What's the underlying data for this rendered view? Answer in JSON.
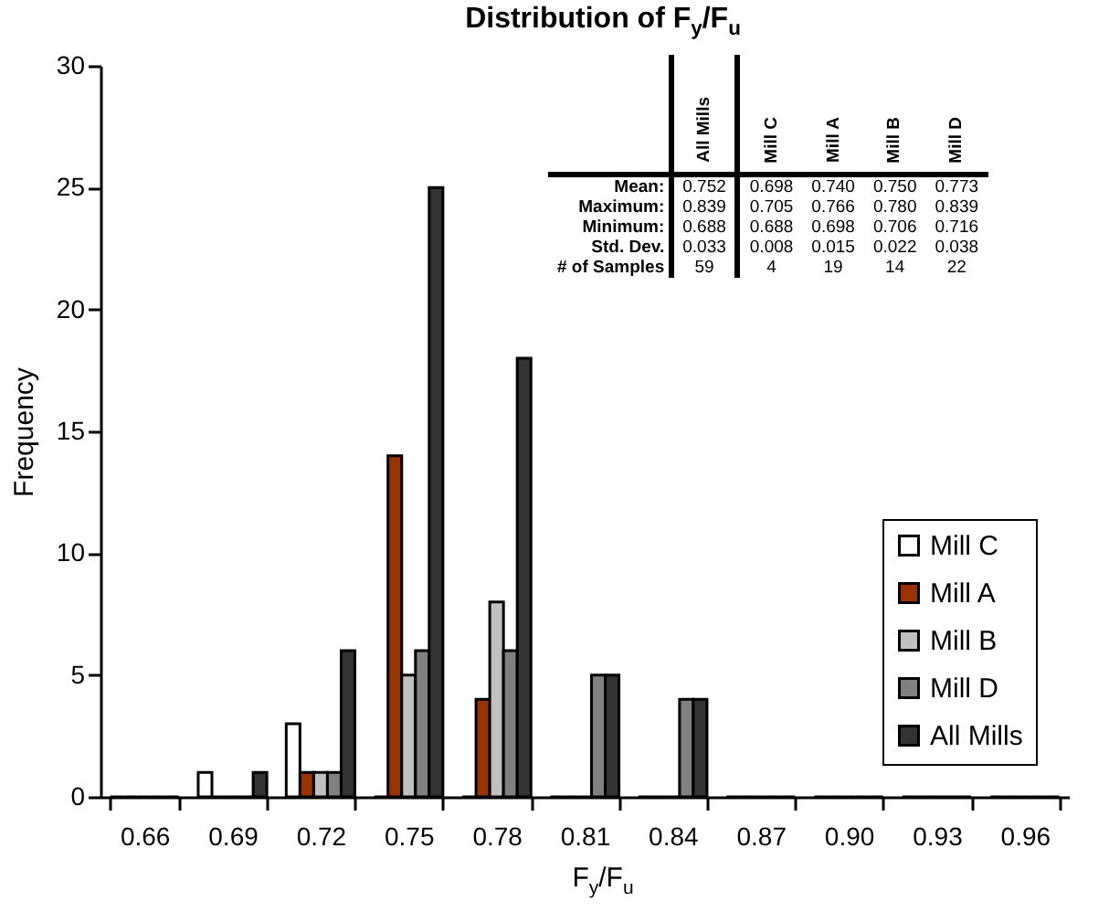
{
  "chart_data": {
    "type": "bar",
    "title": "Distribution of F$_{y}$/F$_{u}$",
    "xlabel": "F$_{y}$/F$_{u}$",
    "ylabel": "Frequency",
    "categories": [
      "0.66",
      "0.69",
      "0.72",
      "0.75",
      "0.78",
      "0.81",
      "0.84",
      "0.87",
      "0.90",
      "0.93",
      "0.96"
    ],
    "series": [
      {
        "name": "Mill C",
        "color": "#ffffff",
        "values": [
          0,
          1,
          3,
          0,
          0,
          0,
          0,
          0,
          0,
          0,
          0
        ]
      },
      {
        "name": "Mill A",
        "color": "#993300",
        "values": [
          0,
          0,
          1,
          14,
          4,
          0,
          0,
          0,
          0,
          0,
          0
        ]
      },
      {
        "name": "Mill B",
        "color": "#c0c0c0",
        "values": [
          0,
          0,
          1,
          5,
          8,
          0,
          0,
          0,
          0,
          0,
          0
        ]
      },
      {
        "name": "Mill D",
        "color": "#808080",
        "values": [
          0,
          0,
          1,
          6,
          6,
          5,
          4,
          0,
          0,
          0,
          0
        ]
      },
      {
        "name": "All Mills",
        "color": "#333333",
        "values": [
          0,
          1,
          6,
          25,
          18,
          5,
          4,
          0,
          0,
          0,
          0
        ]
      }
    ],
    "ylim": [
      0,
      30
    ],
    "yticks": [
      0,
      5,
      10,
      15,
      20,
      25,
      30
    ],
    "legend": "bottom right",
    "annotations": [
      "All Mills",
      "Mill C",
      "Mill A",
      "Mill B",
      "Mill D",
      "Mean:",
      "0.752",
      "0.698",
      "0.740",
      "0.750",
      "0.773",
      "Maximum:",
      "0.839",
      "0.705",
      "0.766",
      "0.780",
      "0.839",
      "Minimum:",
      "0.688",
      "0.688",
      "0.698",
      "0.706",
      "0.716",
      "Std. Dev.",
      "0.033",
      "0.008",
      "0.015",
      "0.022",
      "0.038",
      "# of Samples",
      "59",
      "4",
      "19",
      "14",
      "22"
    ]
  }
}
